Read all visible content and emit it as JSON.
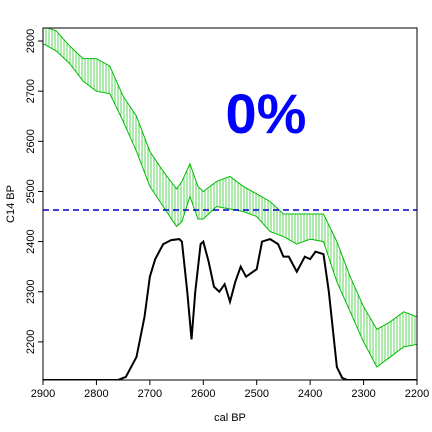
{
  "chart_data": {
    "type": "line",
    "x_label": "cal BP",
    "y_label": "C14 BP",
    "annotation": "0%",
    "annotation_color": "#0000ff",
    "xlim": [
      2900,
      2200
    ],
    "ylim": [
      2124,
      2826
    ],
    "xticks": [
      2900,
      2800,
      2700,
      2600,
      2500,
      2400,
      2300,
      2200
    ],
    "yticks": [
      2200,
      2300,
      2400,
      2500,
      2600,
      2700,
      2800
    ],
    "band": {
      "color": "#00bb00",
      "x": [
        2900,
        2875,
        2850,
        2825,
        2800,
        2775,
        2750,
        2725,
        2700,
        2675,
        2650,
        2640,
        2625,
        2610,
        2600,
        2575,
        2550,
        2525,
        2500,
        2475,
        2450,
        2425,
        2400,
        2375,
        2350,
        2325,
        2300,
        2275,
        2250,
        2225,
        2200
      ],
      "upper": [
        2830,
        2820,
        2790,
        2765,
        2765,
        2750,
        2690,
        2650,
        2580,
        2540,
        2505,
        2520,
        2555,
        2510,
        2500,
        2520,
        2530,
        2510,
        2495,
        2480,
        2455,
        2455,
        2455,
        2455,
        2400,
        2330,
        2270,
        2225,
        2240,
        2260,
        2250
      ],
      "lower": [
        2795,
        2780,
        2755,
        2720,
        2700,
        2695,
        2640,
        2580,
        2510,
        2470,
        2430,
        2440,
        2490,
        2445,
        2445,
        2470,
        2465,
        2460,
        2450,
        2420,
        2410,
        2395,
        2405,
        2400,
        2320,
        2260,
        2200,
        2150,
        2170,
        2190,
        2195
      ]
    },
    "density": {
      "color": "#000000",
      "x": [
        2900,
        2760,
        2745,
        2735,
        2725,
        2710,
        2700,
        2690,
        2675,
        2660,
        2645,
        2640,
        2630,
        2622,
        2615,
        2605,
        2600,
        2590,
        2580,
        2570,
        2560,
        2550,
        2540,
        2530,
        2520,
        2500,
        2490,
        2475,
        2460,
        2450,
        2440,
        2425,
        2410,
        2400,
        2390,
        2375,
        2365,
        2350,
        2340,
        2330,
        2200
      ],
      "values": [
        2124,
        2124,
        2130,
        2150,
        2170,
        2250,
        2330,
        2365,
        2395,
        2403,
        2405,
        2400,
        2300,
        2205,
        2300,
        2395,
        2400,
        2360,
        2310,
        2300,
        2315,
        2280,
        2320,
        2350,
        2330,
        2345,
        2400,
        2405,
        2395,
        2370,
        2370,
        2340,
        2370,
        2365,
        2380,
        2375,
        2300,
        2150,
        2128,
        2124,
        2124
      ]
    },
    "reference_line": {
      "value": 2463,
      "color": "#0000cc"
    }
  }
}
